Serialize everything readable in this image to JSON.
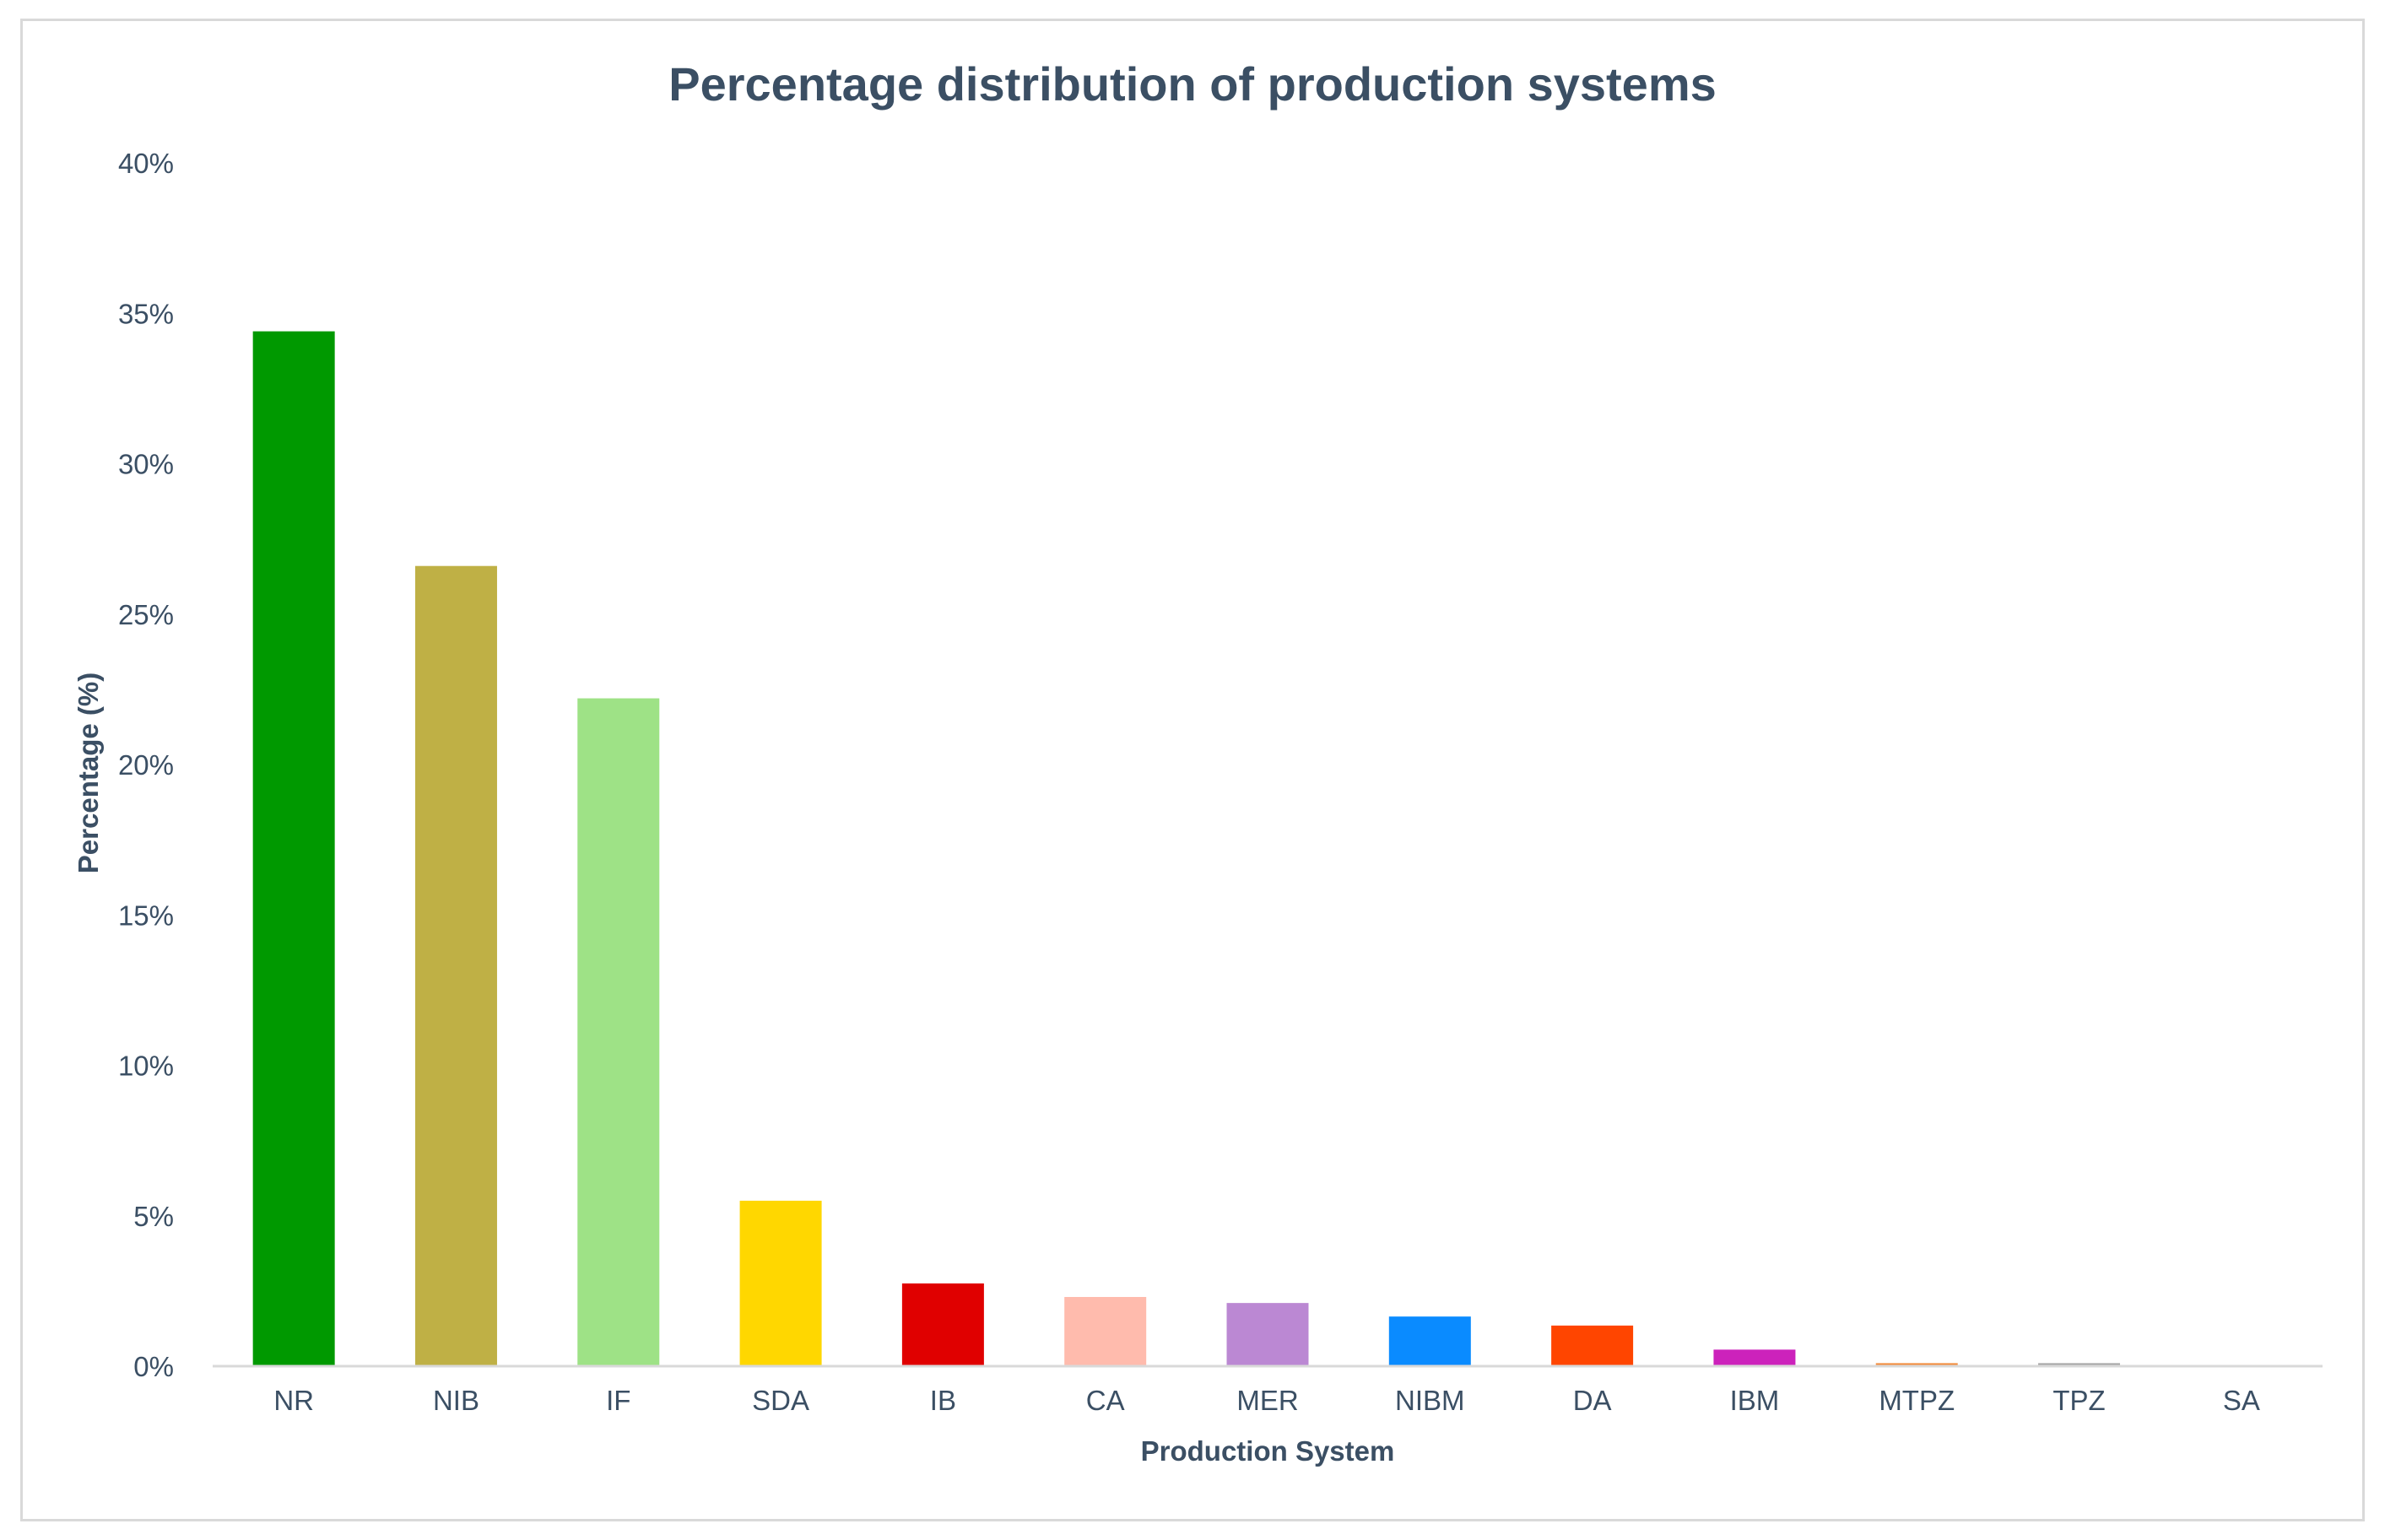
{
  "chart_data": {
    "type": "bar",
    "title": "Percentage distribution of production systems",
    "xlabel": "Production System",
    "ylabel": "Percentage (%)",
    "ylim": [
      0,
      40
    ],
    "y_ticks": [
      0,
      5,
      10,
      15,
      20,
      25,
      30,
      35,
      40
    ],
    "y_tick_labels": [
      "0%",
      "5%",
      "10%",
      "15%",
      "20%",
      "25%",
      "30%",
      "35%",
      "40%"
    ],
    "grid": false,
    "categories": [
      "NR",
      "NIB",
      "IF",
      "SDA",
      "IB",
      "CA",
      "MER",
      "NIBM",
      "DA",
      "IBM",
      "MTPZ",
      "TPZ",
      "SA"
    ],
    "values": [
      34.4,
      26.6,
      22.2,
      5.5,
      2.75,
      2.3,
      2.1,
      1.65,
      1.35,
      0.55,
      0.1,
      0.1,
      0.0
    ],
    "colors": [
      "#009900",
      "#bfb045",
      "#9ee286",
      "#ffd700",
      "#e00000",
      "#ffbbad",
      "#bb88d3",
      "#0a8bff",
      "#ff4500",
      "#cc22bb",
      "#f28b3c",
      "#a6a6a6",
      "#888888"
    ]
  }
}
